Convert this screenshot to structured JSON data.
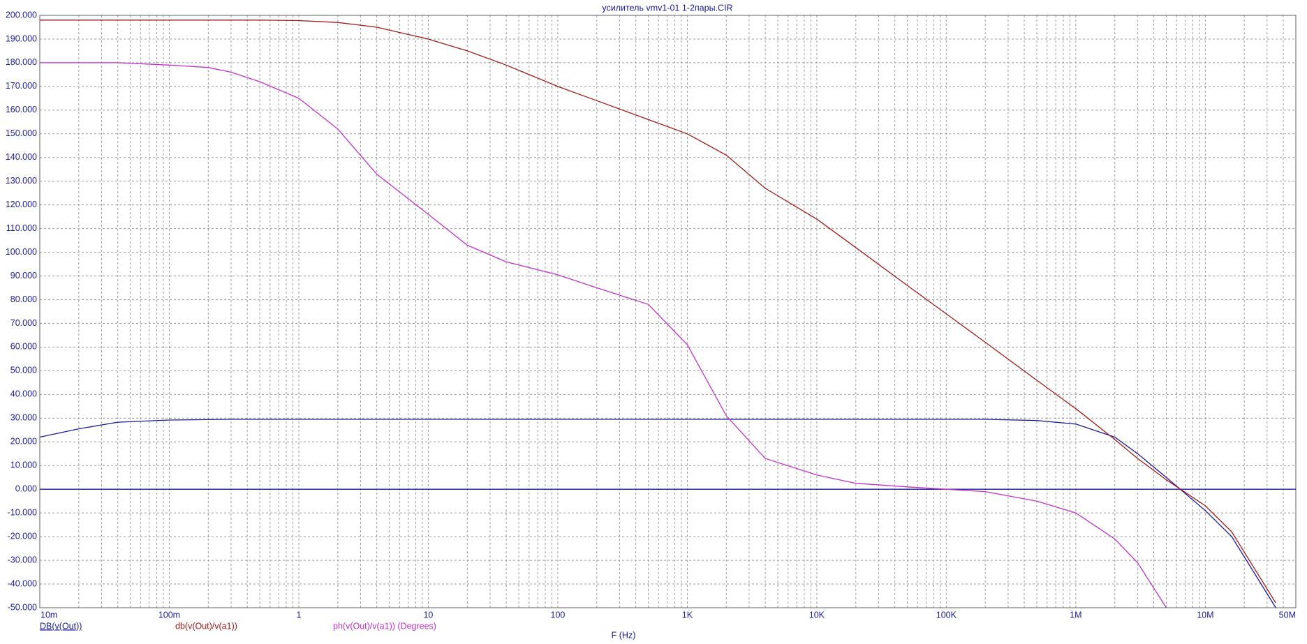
{
  "chart_data": {
    "type": "line",
    "title": "усилитель vmv1-01 1-2пары.CIR",
    "x_label": "F (Hz)",
    "log_x": true,
    "grid": true,
    "x": [
      0.01,
      0.02,
      0.04,
      0.1,
      0.2,
      0.3,
      0.5,
      1,
      2,
      4,
      10,
      20,
      40,
      100,
      200,
      500,
      1000,
      2000,
      4000,
      10000,
      20000,
      50000,
      100000,
      200000,
      500000,
      1000000,
      2000000,
      3000000,
      5000000,
      10000000,
      16000000,
      35000000
    ],
    "series": [
      {
        "name": "DB(v(Out))",
        "color": "#1a1a9c",
        "values": [
          22,
          25.5,
          28.3,
          29.2,
          29.4,
          29.5,
          29.5,
          29.5,
          29.5,
          29.5,
          29.5,
          29.5,
          29.5,
          29.5,
          29.5,
          29.5,
          29.5,
          29.5,
          29.5,
          29.5,
          29.5,
          29.5,
          29.5,
          29.5,
          29,
          27.5,
          22,
          15,
          5,
          -9,
          -20,
          -50
        ]
      },
      {
        "name": "db(v(Out)/v(a1))",
        "color": "#a01818",
        "values": [
          198,
          198,
          198,
          198,
          198,
          198,
          198,
          197.8,
          197,
          195,
          190,
          185,
          179,
          170,
          164,
          156,
          150,
          141,
          127,
          114,
          102,
          86,
          74,
          62,
          46,
          34,
          21,
          13,
          4,
          -7,
          -18,
          -48
        ]
      },
      {
        "name": "ph(v(Out)/v(a1)) (Degrees)",
        "color": "#c030c8",
        "values": [
          180,
          180,
          180,
          179,
          178,
          176,
          172,
          165,
          152,
          133,
          116,
          103,
          96,
          90.5,
          85,
          78,
          61,
          31,
          13,
          6,
          2.5,
          1,
          0,
          -1,
          -5,
          -10,
          -21,
          -31,
          -50,
          null,
          null,
          null
        ]
      }
    ],
    "xlim": [
      0.01,
      50000000
    ],
    "xticks": [
      {
        "value": 0.01,
        "label": "10m"
      },
      {
        "value": 0.1,
        "label": "100m"
      },
      1,
      10,
      100,
      {
        "value": 1000,
        "label": "1K"
      },
      {
        "value": 10000,
        "label": "10K"
      },
      {
        "value": 100000,
        "label": "100K"
      },
      {
        "value": 1000000,
        "label": "1M"
      },
      {
        "value": 10000000,
        "label": "10M"
      },
      {
        "value": 50000000,
        "label": "50M"
      }
    ],
    "ylim": [
      -50,
      200
    ],
    "yticks": [
      {
        "value": -50,
        "label": "-50.000"
      },
      {
        "value": -40,
        "label": "-40.000"
      },
      {
        "value": -30,
        "label": "-30.000"
      },
      {
        "value": -20,
        "label": "-20.000"
      },
      {
        "value": -10,
        "label": "-10.000"
      },
      {
        "value": 0,
        "label": "0.000"
      },
      {
        "value": 10,
        "label": "10.000"
      },
      {
        "value": 20,
        "label": "20.000"
      },
      {
        "value": 30,
        "label": "30.000"
      },
      {
        "value": 40,
        "label": "40.000"
      },
      {
        "value": 50,
        "label": "50.000"
      },
      {
        "value": 60,
        "label": "60.000"
      },
      {
        "value": 70,
        "label": "70.000"
      },
      {
        "value": 80,
        "label": "80.000"
      },
      {
        "value": 90,
        "label": "90.000"
      },
      {
        "value": 100,
        "label": "100.000"
      },
      {
        "value": 110,
        "label": "110.000"
      },
      {
        "value": 120,
        "label": "120.000"
      },
      {
        "value": 130,
        "label": "130.000"
      },
      {
        "value": 140,
        "label": "140.000"
      },
      {
        "value": 150,
        "label": "150.000"
      },
      {
        "value": 160,
        "label": "160.000"
      },
      {
        "value": 170,
        "label": "170.000"
      },
      {
        "value": 180,
        "label": "180.000"
      },
      {
        "value": 190,
        "label": "190.000"
      },
      {
        "value": 200,
        "label": "200.000"
      }
    ]
  }
}
